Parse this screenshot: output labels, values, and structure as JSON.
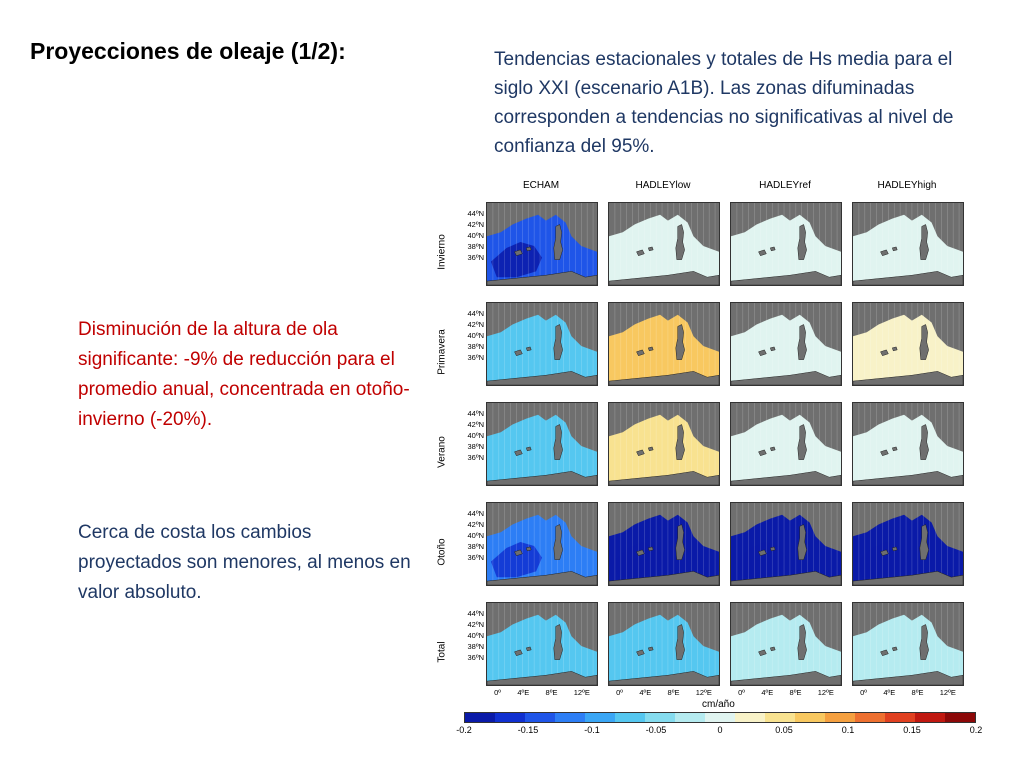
{
  "slide": {
    "title": "Proyecciones de oleaje (1/2):",
    "caption": "Tendencias estacionales y totales de Hs media para el siglo XXI (escenario A1B). Las zonas difuminadas corresponden a tendencias no significativas al nivel de confianza del 95%.",
    "highlight_text": "Disminución de la altura de ola significante:  -9% de reducción para el promedio anual, concentrada en otoño-invierno  (-20%).",
    "body_text": "Cerca de costa los cambios proyectados son menores, al menos en valor absoluto.",
    "colors": {
      "title": "#000000",
      "caption": "#1f3864",
      "highlight": "#c00000",
      "body": "#1f3864"
    }
  },
  "figure": {
    "columns": [
      "ECHAM",
      "HADLEYlow",
      "HADLEYref",
      "HADLEYhigh"
    ],
    "rows": [
      "Invierno",
      "Primavera",
      "Verano",
      "Otoño",
      "Total"
    ],
    "lat_ticks": [
      "44ºN",
      "42ºN",
      "40ºN",
      "38ºN",
      "36ºN"
    ],
    "lon_ticks": [
      "0º",
      "4ºE",
      "8ºE",
      "12ºE"
    ],
    "colorbar": {
      "unit": "cm/año",
      "ticks": [
        "-0.2",
        "-0.15",
        "-0.1",
        "-0.05",
        "0",
        "0.05",
        "0.1",
        "0.15",
        "0.2"
      ],
      "colors": [
        "#0a1aa8",
        "#1030d0",
        "#1f55e8",
        "#2d7ef5",
        "#3aa6f5",
        "#55c7f0",
        "#85dcef",
        "#b5ebf0",
        "#e0f4f0",
        "#f8f2c8",
        "#f8e290",
        "#f8c860",
        "#f5a040",
        "#ee7030",
        "#e04020",
        "#c01810",
        "#8c0808"
      ],
      "range": [
        -0.2,
        0.2
      ]
    },
    "panel_trends": [
      [
        -0.15,
        0.0,
        0.0,
        0.0
      ],
      [
        -0.07,
        0.06,
        0.0,
        0.02
      ],
      [
        -0.08,
        0.05,
        0.0,
        0.0
      ],
      [
        -0.12,
        -0.2,
        -0.18,
        -0.2
      ],
      [
        -0.07,
        -0.06,
        -0.02,
        -0.03
      ]
    ]
  }
}
